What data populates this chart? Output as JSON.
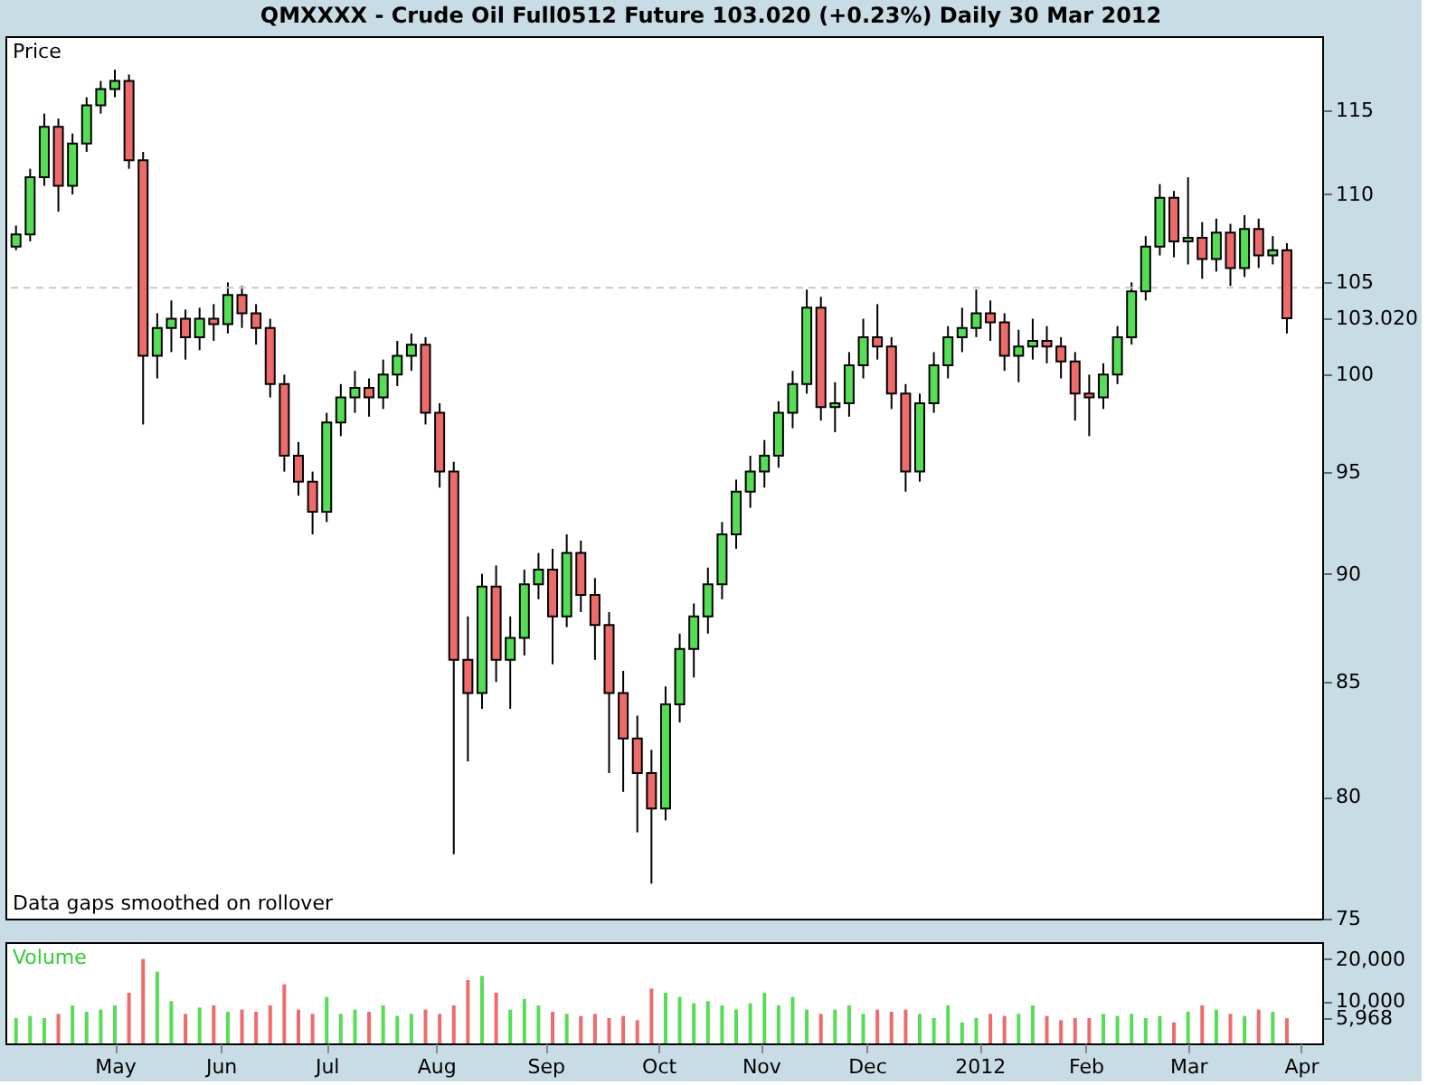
{
  "chart_data": [
    {
      "type": "candlestick",
      "title": "QMXXXX - Crude Oil Full0512 Future     103.020 (+0.23%)     Daily  30 Mar 2012",
      "ylabel": "Price",
      "x": [
        "2011-04-04",
        "2011-04-08",
        "2011-04-12",
        "2011-04-16",
        "2011-04-20",
        "2011-04-24",
        "2011-04-28",
        "2011-05-02",
        "2011-05-06",
        "2011-05-10",
        "2011-05-14",
        "2011-05-18",
        "2011-05-22",
        "2011-05-26",
        "2011-05-30",
        "2011-06-03",
        "2011-06-07",
        "2011-06-11",
        "2011-06-15",
        "2011-06-19",
        "2011-06-23",
        "2011-06-27",
        "2011-07-01",
        "2011-07-05",
        "2011-07-09",
        "2011-07-13",
        "2011-07-17",
        "2011-07-21",
        "2011-07-25",
        "2011-07-29",
        "2011-08-02",
        "2011-08-06",
        "2011-08-10",
        "2011-08-14",
        "2011-08-18",
        "2011-08-22",
        "2011-08-26",
        "2011-08-30",
        "2011-09-03",
        "2011-09-07",
        "2011-09-11",
        "2011-09-15",
        "2011-09-19",
        "2011-09-23",
        "2011-09-27",
        "2011-10-01",
        "2011-10-05",
        "2011-10-09",
        "2011-10-13",
        "2011-10-17",
        "2011-10-21",
        "2011-10-25",
        "2011-10-29",
        "2011-11-02",
        "2011-11-06",
        "2011-11-10",
        "2011-11-14",
        "2011-11-18",
        "2011-11-22",
        "2011-11-26",
        "2011-11-30",
        "2011-12-04",
        "2011-12-08",
        "2011-12-12",
        "2011-12-16",
        "2011-12-20",
        "2011-12-24",
        "2011-12-28",
        "2012-01-01",
        "2012-01-05",
        "2012-01-09",
        "2012-01-13",
        "2012-01-17",
        "2012-01-21",
        "2012-01-25",
        "2012-01-29",
        "2012-02-02",
        "2012-02-06",
        "2012-02-10",
        "2012-02-14",
        "2012-02-18",
        "2012-02-22",
        "2012-02-26",
        "2012-03-01",
        "2012-03-05",
        "2012-03-09",
        "2012-03-13",
        "2012-03-17",
        "2012-03-21",
        "2012-03-25",
        "2012-03-29"
      ],
      "ohlc": [
        [
          107.0,
          108.2,
          106.8,
          107.7
        ],
        [
          107.7,
          111.5,
          107.3,
          111.0
        ],
        [
          111.0,
          114.8,
          110.5,
          114.0
        ],
        [
          114.0,
          114.5,
          109.0,
          110.5
        ],
        [
          110.5,
          113.6,
          110.0,
          113.0
        ],
        [
          113.0,
          115.8,
          112.5,
          115.3
        ],
        [
          115.3,
          116.8,
          114.8,
          116.3
        ],
        [
          116.3,
          117.5,
          115.8,
          116.8
        ],
        [
          116.8,
          117.2,
          111.5,
          112.0
        ],
        [
          112.0,
          112.5,
          97.4,
          101.0
        ],
        [
          101.0,
          103.3,
          99.8,
          102.5
        ],
        [
          102.5,
          104.0,
          101.2,
          103.0
        ],
        [
          103.0,
          103.5,
          100.8,
          102.0
        ],
        [
          102.0,
          103.6,
          101.3,
          103.0
        ],
        [
          103.0,
          103.8,
          101.8,
          102.7
        ],
        [
          102.7,
          105.0,
          102.2,
          104.3
        ],
        [
          104.3,
          104.8,
          102.5,
          103.3
        ],
        [
          103.3,
          103.8,
          101.6,
          102.5
        ],
        [
          102.5,
          103.0,
          98.8,
          99.5
        ],
        [
          99.5,
          100.0,
          95.0,
          95.8
        ],
        [
          95.8,
          96.5,
          93.8,
          94.5
        ],
        [
          94.5,
          95.0,
          91.9,
          93.0
        ],
        [
          93.0,
          98.0,
          92.5,
          97.5
        ],
        [
          97.5,
          99.5,
          96.8,
          98.8
        ],
        [
          98.8,
          100.2,
          98.0,
          99.3
        ],
        [
          99.3,
          99.8,
          97.8,
          98.8
        ],
        [
          98.8,
          100.8,
          98.2,
          100.0
        ],
        [
          100.0,
          101.8,
          99.4,
          101.0
        ],
        [
          101.0,
          102.2,
          100.2,
          101.6
        ],
        [
          101.6,
          102.0,
          97.4,
          98.0
        ],
        [
          98.0,
          98.5,
          94.2,
          95.0
        ],
        [
          95.0,
          95.5,
          77.6,
          86.0
        ],
        [
          86.0,
          88.0,
          81.5,
          84.5
        ],
        [
          84.5,
          90.0,
          83.8,
          89.4
        ],
        [
          89.4,
          90.4,
          85.0,
          86.0
        ],
        [
          86.0,
          88.0,
          83.8,
          87.0
        ],
        [
          87.0,
          90.2,
          86.2,
          89.5
        ],
        [
          89.5,
          91.0,
          88.8,
          90.2
        ],
        [
          90.2,
          91.2,
          85.8,
          88.0
        ],
        [
          88.0,
          91.9,
          87.5,
          91.0
        ],
        [
          91.0,
          91.6,
          88.2,
          89.0
        ],
        [
          89.0,
          89.8,
          86.0,
          87.6
        ],
        [
          87.6,
          88.2,
          81.0,
          84.5
        ],
        [
          84.5,
          85.5,
          80.2,
          82.5
        ],
        [
          82.5,
          83.5,
          78.5,
          81.0
        ],
        [
          81.0,
          82.0,
          76.4,
          79.5
        ],
        [
          79.5,
          84.8,
          79.0,
          84.0
        ],
        [
          84.0,
          87.2,
          83.2,
          86.5
        ],
        [
          86.5,
          88.6,
          85.2,
          88.0
        ],
        [
          88.0,
          90.3,
          87.2,
          89.5
        ],
        [
          89.5,
          92.5,
          88.8,
          91.9
        ],
        [
          91.9,
          94.6,
          91.2,
          94.0
        ],
        [
          94.0,
          95.8,
          93.2,
          95.0
        ],
        [
          95.0,
          96.6,
          94.2,
          95.8
        ],
        [
          95.8,
          98.6,
          95.2,
          98.0
        ],
        [
          98.0,
          100.2,
          97.2,
          99.5
        ],
        [
          99.5,
          104.6,
          99.0,
          103.6
        ],
        [
          103.6,
          104.2,
          97.6,
          98.3
        ],
        [
          98.3,
          99.6,
          97.0,
          98.5
        ],
        [
          98.5,
          101.2,
          97.8,
          100.5
        ],
        [
          100.5,
          103.0,
          99.8,
          102.0
        ],
        [
          102.0,
          103.8,
          100.8,
          101.5
        ],
        [
          101.5,
          102.0,
          98.2,
          99.0
        ],
        [
          99.0,
          99.5,
          94.0,
          95.0
        ],
        [
          95.0,
          99.0,
          94.5,
          98.5
        ],
        [
          98.5,
          101.2,
          98.0,
          100.5
        ],
        [
          100.5,
          102.6,
          99.8,
          102.0
        ],
        [
          102.0,
          103.6,
          101.2,
          102.5
        ],
        [
          102.5,
          104.6,
          102.0,
          103.3
        ],
        [
          103.3,
          104.0,
          101.8,
          102.8
        ],
        [
          102.8,
          103.3,
          100.2,
          101.0
        ],
        [
          101.0,
          102.4,
          99.6,
          101.5
        ],
        [
          101.5,
          103.0,
          100.8,
          101.8
        ],
        [
          101.8,
          102.6,
          100.6,
          101.5
        ],
        [
          101.5,
          102.0,
          99.8,
          100.7
        ],
        [
          100.7,
          101.2,
          97.6,
          99.0
        ],
        [
          99.0,
          100.0,
          96.8,
          98.8
        ],
        [
          98.8,
          100.6,
          98.2,
          100.0
        ],
        [
          100.0,
          102.6,
          99.5,
          102.0
        ],
        [
          102.0,
          105.0,
          101.6,
          104.5
        ],
        [
          104.5,
          107.6,
          104.0,
          107.0
        ],
        [
          107.0,
          110.6,
          106.5,
          109.8
        ],
        [
          109.8,
          110.2,
          106.4,
          107.3
        ],
        [
          107.3,
          111.0,
          106.0,
          107.5
        ],
        [
          107.5,
          108.4,
          105.2,
          106.3
        ],
        [
          106.3,
          108.6,
          105.6,
          107.8
        ],
        [
          107.8,
          108.3,
          104.8,
          105.8
        ],
        [
          105.8,
          108.8,
          105.3,
          108.0
        ],
        [
          108.0,
          108.6,
          105.8,
          106.5
        ],
        [
          106.5,
          107.6,
          106.0,
          106.8
        ],
        [
          106.8,
          107.2,
          102.2,
          103.02
        ]
      ],
      "colors": [
        "#55dd55",
        "#55dd55",
        "#55dd55",
        "#ee6b6b",
        "#55dd55",
        "#55dd55",
        "#55dd55",
        "#55dd55",
        "#ee6b6b",
        "#ee6b6b",
        "#55dd55",
        "#55dd55",
        "#ee6b6b",
        "#55dd55",
        "#ee6b6b",
        "#55dd55",
        "#ee6b6b",
        "#ee6b6b",
        "#ee6b6b",
        "#ee6b6b",
        "#ee6b6b",
        "#ee6b6b",
        "#55dd55",
        "#55dd55",
        "#55dd55",
        "#ee6b6b",
        "#55dd55",
        "#55dd55",
        "#55dd55",
        "#ee6b6b",
        "#ee6b6b",
        "#ee6b6b",
        "#ee6b6b",
        "#55dd55",
        "#ee6b6b",
        "#55dd55",
        "#55dd55",
        "#55dd55",
        "#ee6b6b",
        "#55dd55",
        "#ee6b6b",
        "#ee6b6b",
        "#ee6b6b",
        "#ee6b6b",
        "#ee6b6b",
        "#ee6b6b",
        "#55dd55",
        "#55dd55",
        "#55dd55",
        "#55dd55",
        "#55dd55",
        "#55dd55",
        "#55dd55",
        "#55dd55",
        "#55dd55",
        "#55dd55",
        "#55dd55",
        "#ee6b6b",
        "#55dd55",
        "#55dd55",
        "#55dd55",
        "#ee6b6b",
        "#ee6b6b",
        "#ee6b6b",
        "#55dd55",
        "#55dd55",
        "#55dd55",
        "#55dd55",
        "#55dd55",
        "#ee6b6b",
        "#ee6b6b",
        "#55dd55",
        "#55dd55",
        "#ee6b6b",
        "#ee6b6b",
        "#ee6b6b",
        "#ee6b6b",
        "#55dd55",
        "#55dd55",
        "#55dd55",
        "#55dd55",
        "#55dd55",
        "#ee6b6b",
        "#55dd55",
        "#ee6b6b",
        "#55dd55",
        "#ee6b6b",
        "#55dd55",
        "#ee6b6b",
        "#55dd55",
        "#ee6b6b"
      ],
      "xlim": [
        "2011-04-01",
        "2012-04-08"
      ],
      "ylim": [
        75,
        119.6
      ],
      "log": true,
      "yticks": [
        75,
        80,
        85,
        90,
        95,
        100,
        {
          "value": 103.02,
          "label": "103.020"
        },
        105,
        110,
        115
      ],
      "tick_labels": "y",
      "grid": false,
      "ref_lines": [
        {
          "axis": "y",
          "value": 104.7,
          "label": null,
          "color": "#c8c8c8",
          "line_style": "dashed"
        }
      ],
      "annotations": [
        "Data gaps smoothed on rollover"
      ]
    },
    {
      "type": "bar",
      "ylabel": "Volume",
      "x": [
        "2011-04-04",
        "2011-04-08",
        "2011-04-12",
        "2011-04-16",
        "2011-04-20",
        "2011-04-24",
        "2011-04-28",
        "2011-05-02",
        "2011-05-06",
        "2011-05-10",
        "2011-05-14",
        "2011-05-18",
        "2011-05-22",
        "2011-05-26",
        "2011-05-30",
        "2011-06-03",
        "2011-06-07",
        "2011-06-11",
        "2011-06-15",
        "2011-06-19",
        "2011-06-23",
        "2011-06-27",
        "2011-07-01",
        "2011-07-05",
        "2011-07-09",
        "2011-07-13",
        "2011-07-17",
        "2011-07-21",
        "2011-07-25",
        "2011-07-29",
        "2011-08-02",
        "2011-08-06",
        "2011-08-10",
        "2011-08-14",
        "2011-08-18",
        "2011-08-22",
        "2011-08-26",
        "2011-08-30",
        "2011-09-03",
        "2011-09-07",
        "2011-09-11",
        "2011-09-15",
        "2011-09-19",
        "2011-09-23",
        "2011-09-27",
        "2011-10-01",
        "2011-10-05",
        "2011-10-09",
        "2011-10-13",
        "2011-10-17",
        "2011-10-21",
        "2011-10-25",
        "2011-10-29",
        "2011-11-02",
        "2011-11-06",
        "2011-11-10",
        "2011-11-14",
        "2011-11-18",
        "2011-11-22",
        "2011-11-26",
        "2011-11-30",
        "2011-12-04",
        "2011-12-08",
        "2011-12-12",
        "2011-12-16",
        "2011-12-20",
        "2011-12-24",
        "2011-12-28",
        "2012-01-01",
        "2012-01-05",
        "2012-01-09",
        "2012-01-13",
        "2012-01-17",
        "2012-01-21",
        "2012-01-25",
        "2012-01-29",
        "2012-02-02",
        "2012-02-06",
        "2012-02-10",
        "2012-02-14",
        "2012-02-18",
        "2012-02-22",
        "2012-02-26",
        "2012-03-01",
        "2012-03-05",
        "2012-03-09",
        "2012-03-13",
        "2012-03-17",
        "2012-03-21",
        "2012-03-25",
        "2012-03-29"
      ],
      "values": [
        6000,
        6500,
        6000,
        7000,
        9000,
        7500,
        8000,
        9000,
        12000,
        20000,
        17000,
        10000,
        7000,
        8500,
        9000,
        7500,
        8000,
        7500,
        9000,
        14000,
        8000,
        7000,
        11000,
        7000,
        8000,
        7500,
        9000,
        6500,
        7000,
        8000,
        7000,
        9000,
        15000,
        16000,
        12000,
        8000,
        10500,
        9000,
        7500,
        7000,
        6500,
        7000,
        6000,
        6500,
        5500,
        13000,
        12000,
        11000,
        9500,
        10000,
        9000,
        8000,
        9500,
        12000,
        9000,
        11000,
        8000,
        7000,
        8000,
        9000,
        7000,
        8000,
        7500,
        8000,
        7000,
        6000,
        9000,
        5000,
        6000,
        7000,
        6500,
        7000,
        9000,
        6500,
        5500,
        6000,
        6000,
        7000,
        6500,
        7000,
        6000,
        6500,
        5000,
        7500,
        9000,
        8000,
        7000,
        6500,
        8000,
        7500,
        5968
      ],
      "colors": [
        "#55dd55",
        "#55dd55",
        "#55dd55",
        "#ee6b6b",
        "#55dd55",
        "#55dd55",
        "#55dd55",
        "#55dd55",
        "#ee6b6b",
        "#ee6b6b",
        "#55dd55",
        "#55dd55",
        "#ee6b6b",
        "#55dd55",
        "#ee6b6b",
        "#55dd55",
        "#ee6b6b",
        "#ee6b6b",
        "#ee6b6b",
        "#ee6b6b",
        "#ee6b6b",
        "#ee6b6b",
        "#55dd55",
        "#55dd55",
        "#55dd55",
        "#ee6b6b",
        "#55dd55",
        "#55dd55",
        "#55dd55",
        "#ee6b6b",
        "#ee6b6b",
        "#ee6b6b",
        "#ee6b6b",
        "#55dd55",
        "#ee6b6b",
        "#55dd55",
        "#55dd55",
        "#55dd55",
        "#ee6b6b",
        "#55dd55",
        "#ee6b6b",
        "#ee6b6b",
        "#ee6b6b",
        "#ee6b6b",
        "#ee6b6b",
        "#ee6b6b",
        "#55dd55",
        "#55dd55",
        "#55dd55",
        "#55dd55",
        "#55dd55",
        "#55dd55",
        "#55dd55",
        "#55dd55",
        "#55dd55",
        "#55dd55",
        "#55dd55",
        "#ee6b6b",
        "#55dd55",
        "#55dd55",
        "#55dd55",
        "#ee6b6b",
        "#ee6b6b",
        "#ee6b6b",
        "#55dd55",
        "#55dd55",
        "#55dd55",
        "#55dd55",
        "#55dd55",
        "#ee6b6b",
        "#ee6b6b",
        "#55dd55",
        "#55dd55",
        "#ee6b6b",
        "#ee6b6b",
        "#ee6b6b",
        "#ee6b6b",
        "#55dd55",
        "#55dd55",
        "#55dd55",
        "#55dd55",
        "#55dd55",
        "#ee6b6b",
        "#55dd55",
        "#ee6b6b",
        "#55dd55",
        "#ee6b6b",
        "#55dd55",
        "#ee6b6b",
        "#55dd55",
        "#ee6b6b"
      ],
      "xlim": [
        "2011-04-01",
        "2012-04-08"
      ],
      "xticks": [
        {
          "value": "2011-05-02",
          "label": "May"
        },
        {
          "value": "2011-06-01",
          "label": "Jun"
        },
        {
          "value": "2011-07-01",
          "label": "Jul"
        },
        {
          "value": "2011-08-01",
          "label": "Aug"
        },
        {
          "value": "2011-09-01",
          "label": "Sep"
        },
        {
          "value": "2011-10-03",
          "label": "Oct"
        },
        {
          "value": "2011-11-01",
          "label": "Nov"
        },
        {
          "value": "2011-12-01",
          "label": "Dec"
        },
        {
          "value": "2012-01-02",
          "label": "2012"
        },
        {
          "value": "2012-02-01",
          "label": "Feb"
        },
        {
          "value": "2012-03-01",
          "label": "Mar"
        },
        {
          "value": "2012-04-02",
          "label": "Apr"
        }
      ],
      "ylim": [
        0,
        24000
      ],
      "yticks": [
        {
          "value": 5968,
          "label": "5,968"
        },
        {
          "value": 10000,
          "label": "10,000"
        },
        {
          "value": 20000,
          "label": "20,000"
        }
      ],
      "grid": false
    }
  ]
}
